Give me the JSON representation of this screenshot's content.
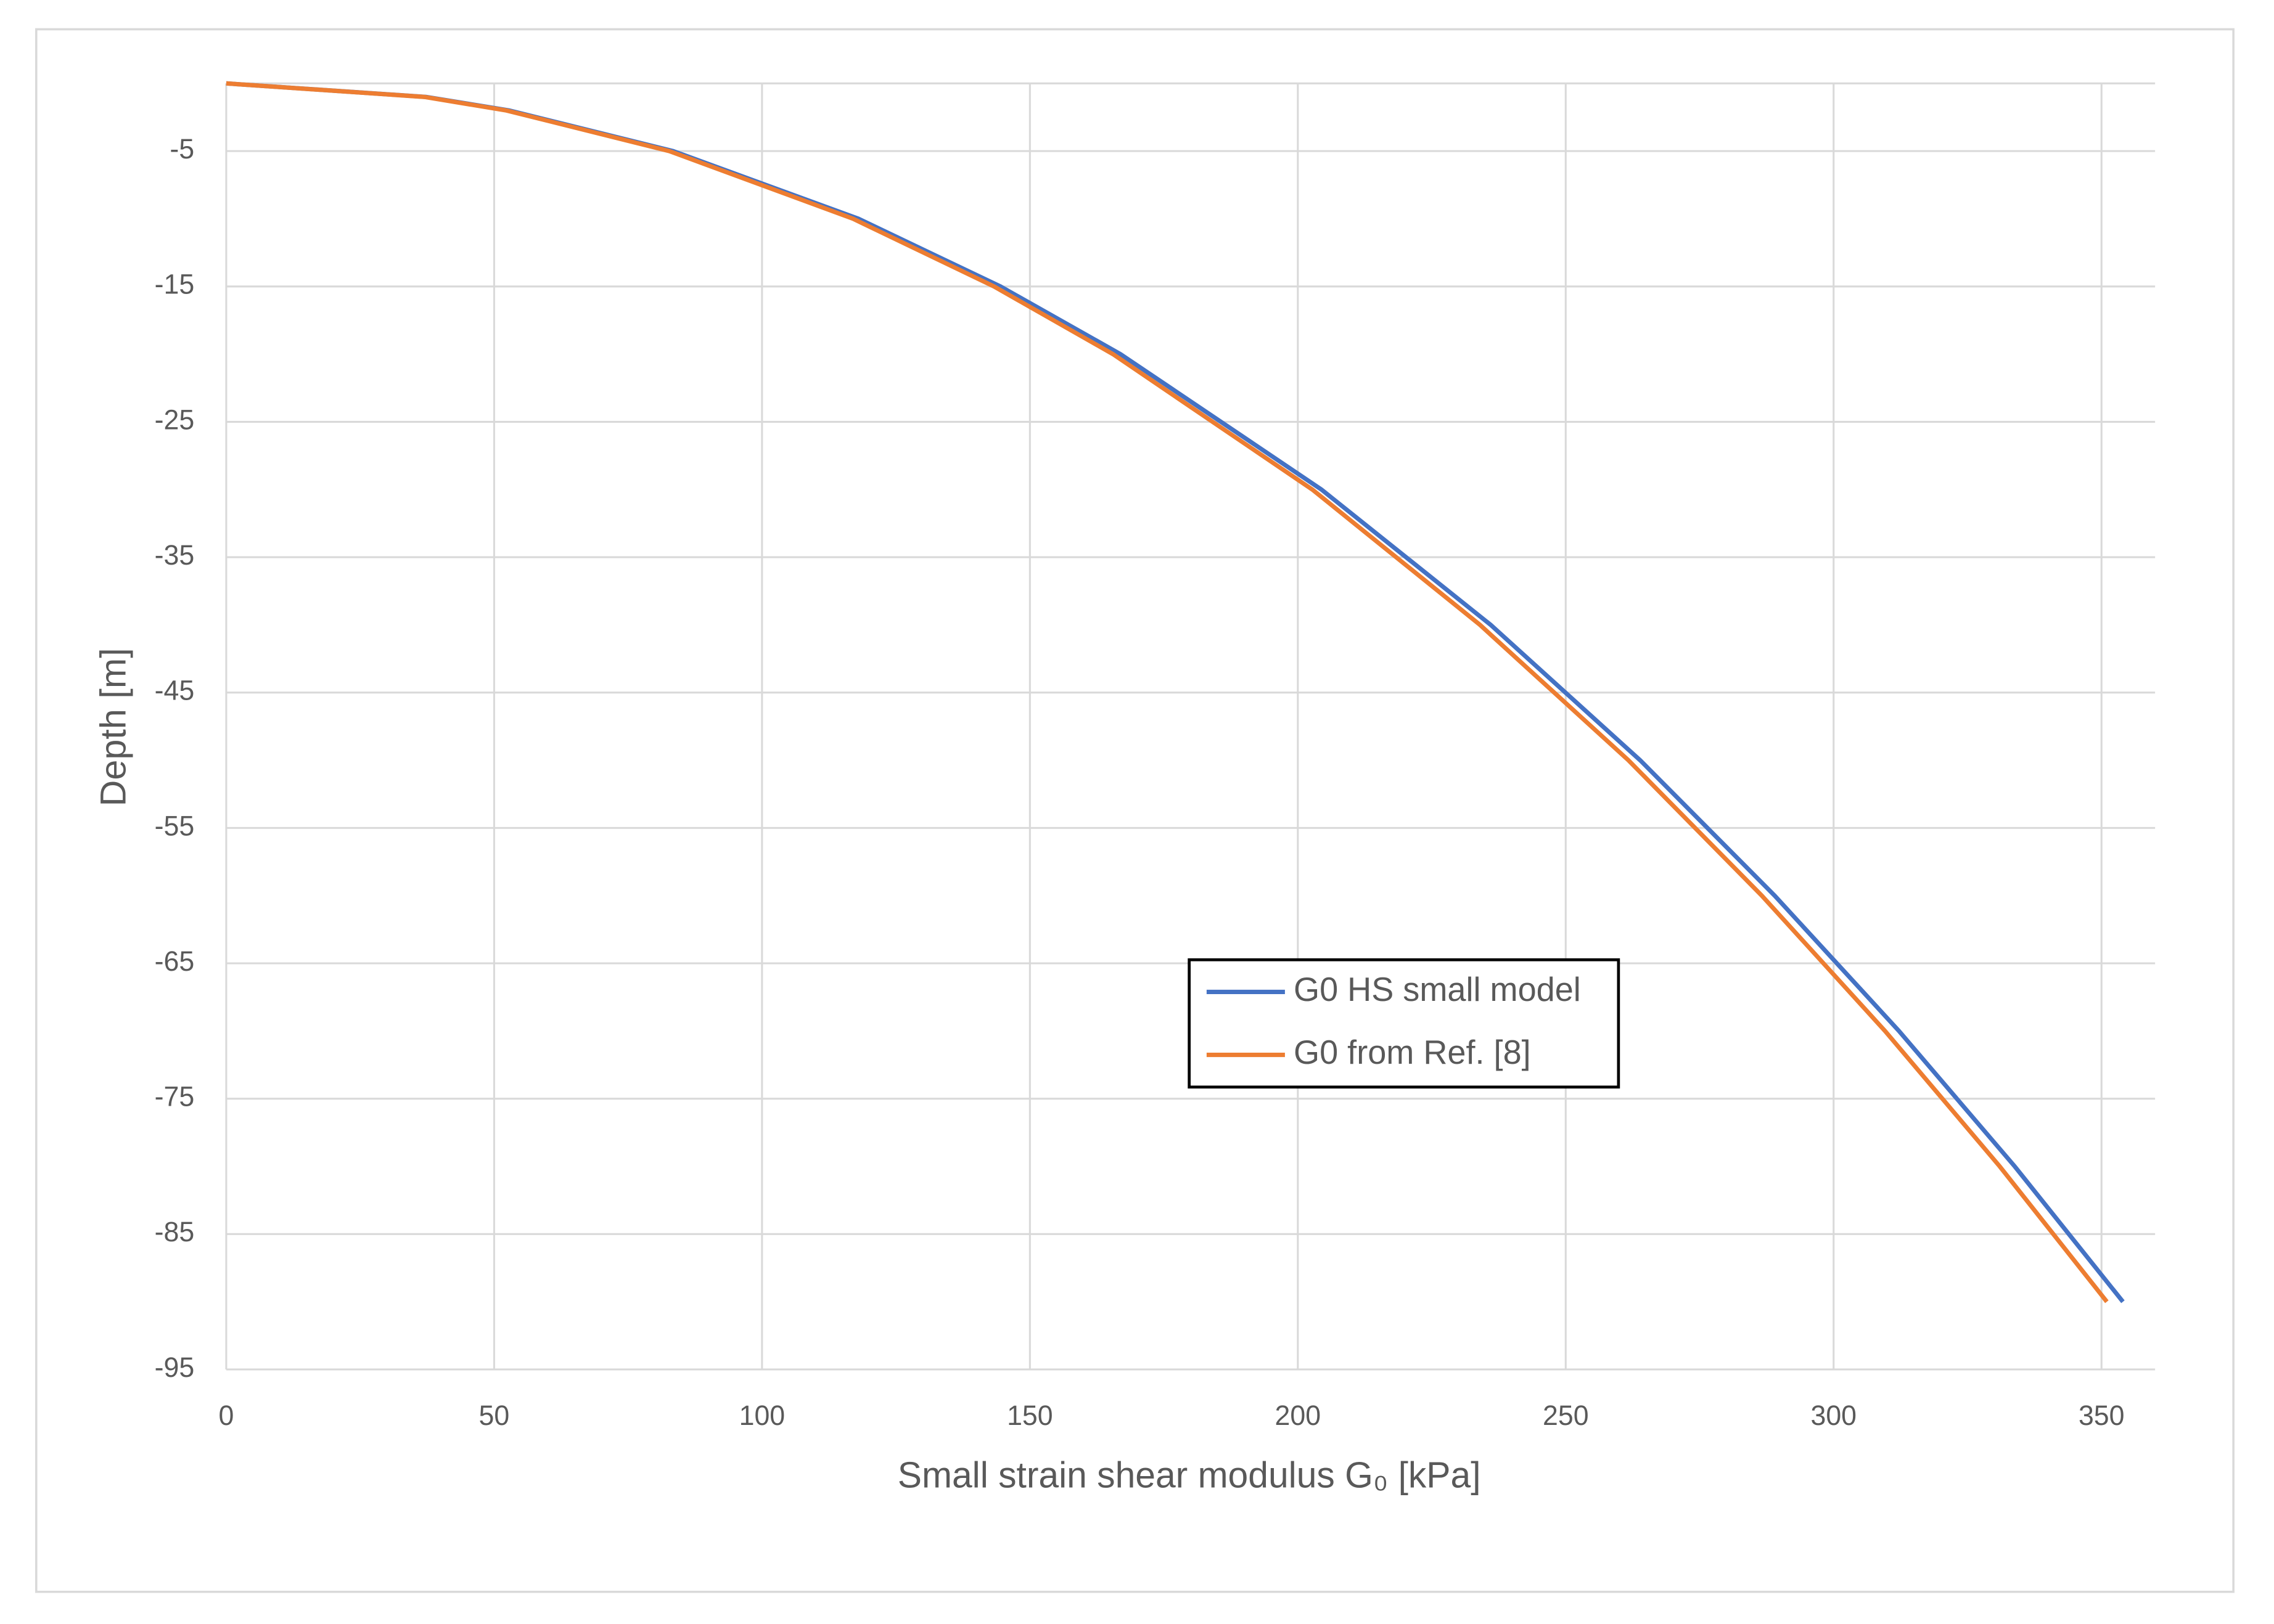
{
  "chart_data": {
    "type": "line",
    "xlabel": "Small strain shear modulus G₀ [kPa]",
    "ylabel": "Depth [m]",
    "xlim": [
      0,
      360
    ],
    "xticks": [
      0,
      50,
      100,
      150,
      200,
      250,
      300,
      350
    ],
    "ylim": [
      -95,
      0
    ],
    "yticks": [
      -95,
      -85,
      -75,
      -65,
      -55,
      -45,
      -35,
      -25,
      -15,
      -5
    ],
    "grid": true,
    "legend": "center-right",
    "series": [
      {
        "name": "G0 HS small model",
        "color": "#4472c4",
        "x": [
          0,
          37.3,
          52.8,
          83.4,
          118,
          144.5,
          166.9,
          204.4,
          236,
          263.9,
          289,
          312.2,
          333.8,
          354
        ],
        "values": [
          0,
          -1,
          -2,
          -5,
          -10,
          -15,
          -20,
          -30,
          -40,
          -50,
          -60,
          -70,
          -80,
          -90
        ]
      },
      {
        "name": "G0 from Ref. [8]",
        "color": "#ed7d31",
        "x": [
          0,
          37,
          52.3,
          82.7,
          117,
          143.3,
          165.5,
          202.7,
          234,
          261.7,
          286.6,
          309.6,
          331,
          351
        ],
        "values": [
          0,
          -1,
          -2,
          -5,
          -10,
          -15,
          -20,
          -30,
          -40,
          -50,
          -60,
          -70,
          -80,
          -90
        ]
      }
    ]
  }
}
